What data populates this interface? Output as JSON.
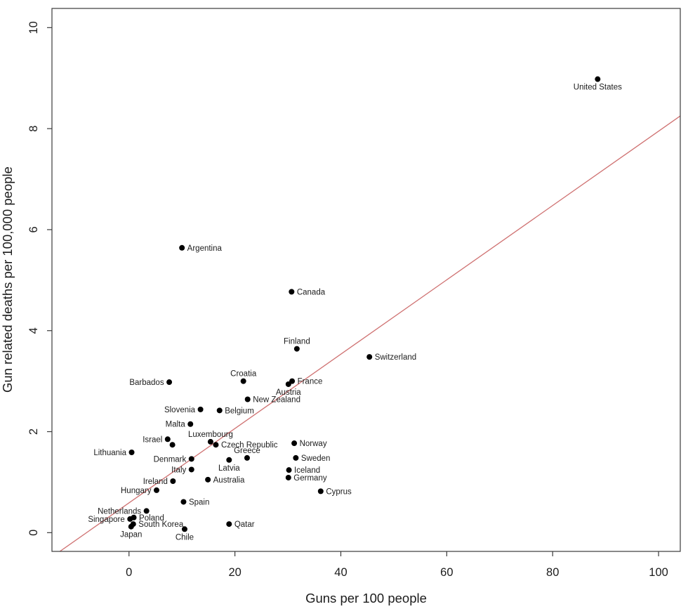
{
  "figure": {
    "background": "#ffffff"
  },
  "chart_data": {
    "type": "scatter",
    "title": "",
    "xlabel": "Guns per 100 people",
    "ylabel": "Gun related deaths per 100,000 people",
    "xlim": [
      -14.55,
      104.1
    ],
    "ylim": [
      -0.371,
      10.38
    ],
    "x_ticks": [
      0,
      20,
      40,
      60,
      80,
      100
    ],
    "y_ticks": [
      0,
      2,
      4,
      6,
      8,
      10
    ],
    "grid": false,
    "legend": "none",
    "point_color": "#000000",
    "axis_color": "#3a3a3a",
    "text_color": "#1c1c1c",
    "trend_line": {
      "slope": 0.0736,
      "intercept": 0.59,
      "color": "#cf7171"
    },
    "points": [
      {
        "label": "United States",
        "x": 88.5,
        "y": 8.98,
        "label_pos": "below"
      },
      {
        "label": "Argentina",
        "x": 10.0,
        "y": 5.64,
        "label_pos": "right"
      },
      {
        "label": "Canada",
        "x": 30.7,
        "y": 4.77,
        "label_pos": "right"
      },
      {
        "label": "Finland",
        "x": 31.7,
        "y": 3.64,
        "label_pos": "above"
      },
      {
        "label": "Switzerland",
        "x": 45.4,
        "y": 3.48,
        "label_pos": "right"
      },
      {
        "label": "Croatia",
        "x": 21.6,
        "y": 3.0,
        "label_pos": "above"
      },
      {
        "label": "France",
        "x": 30.8,
        "y": 3.0,
        "label_pos": "right"
      },
      {
        "label": "Barbados",
        "x": 7.6,
        "y": 2.98,
        "label_pos": "left"
      },
      {
        "label": "Austria",
        "x": 30.1,
        "y": 2.94,
        "label_pos": "below"
      },
      {
        "label": "New Zealand",
        "x": 22.4,
        "y": 2.64,
        "label_pos": "right"
      },
      {
        "label": "Slovenia",
        "x": 13.5,
        "y": 2.44,
        "label_pos": "left"
      },
      {
        "label": "Belgium",
        "x": 17.1,
        "y": 2.42,
        "label_pos": "right"
      },
      {
        "label": "Malta",
        "x": 11.6,
        "y": 2.15,
        "label_pos": "left"
      },
      {
        "label": "Israel",
        "x": 7.3,
        "y": 1.85,
        "label_pos": "left"
      },
      {
        "label": "Luxembourg",
        "x": 15.4,
        "y": 1.8,
        "label_pos": "above"
      },
      {
        "label": "Norway",
        "x": 31.2,
        "y": 1.77,
        "label_pos": "right"
      },
      {
        "label": "",
        "x": 8.2,
        "y": 1.74,
        "label_pos": "none"
      },
      {
        "label": "Czech Republic",
        "x": 16.4,
        "y": 1.74,
        "label_pos": "right"
      },
      {
        "label": "Lithuania",
        "x": 0.5,
        "y": 1.59,
        "label_pos": "left"
      },
      {
        "label": "Greece",
        "x": 22.3,
        "y": 1.48,
        "label_pos": "above"
      },
      {
        "label": "Sweden",
        "x": 31.5,
        "y": 1.48,
        "label_pos": "right"
      },
      {
        "label": "Denmark",
        "x": 11.8,
        "y": 1.46,
        "label_pos": "left"
      },
      {
        "label": "Latvia",
        "x": 18.9,
        "y": 1.44,
        "label_pos": "below"
      },
      {
        "label": "Italy",
        "x": 11.8,
        "y": 1.25,
        "label_pos": "left"
      },
      {
        "label": "Iceland",
        "x": 30.2,
        "y": 1.24,
        "label_pos": "right"
      },
      {
        "label": "Germany",
        "x": 30.1,
        "y": 1.09,
        "label_pos": "right"
      },
      {
        "label": "Australia",
        "x": 14.9,
        "y": 1.05,
        "label_pos": "right"
      },
      {
        "label": "Ireland",
        "x": 8.3,
        "y": 1.02,
        "label_pos": "left"
      },
      {
        "label": "Hungary",
        "x": 5.2,
        "y": 0.84,
        "label_pos": "left"
      },
      {
        "label": "Cyprus",
        "x": 36.2,
        "y": 0.82,
        "label_pos": "right"
      },
      {
        "label": "Spain",
        "x": 10.3,
        "y": 0.61,
        "label_pos": "right"
      },
      {
        "label": "Netherlands",
        "x": 3.3,
        "y": 0.43,
        "label_pos": "left"
      },
      {
        "label": "Poland",
        "x": 0.9,
        "y": 0.3,
        "label_pos": "right"
      },
      {
        "label": "Singapore",
        "x": 0.2,
        "y": 0.27,
        "label_pos": "left"
      },
      {
        "label": "South Korea",
        "x": 0.8,
        "y": 0.17,
        "label_pos": "right"
      },
      {
        "label": "Qatar",
        "x": 18.9,
        "y": 0.17,
        "label_pos": "right"
      },
      {
        "label": "Japan",
        "x": 0.4,
        "y": 0.12,
        "label_pos": "below"
      },
      {
        "label": "Chile",
        "x": 10.5,
        "y": 0.07,
        "label_pos": "below"
      }
    ]
  }
}
